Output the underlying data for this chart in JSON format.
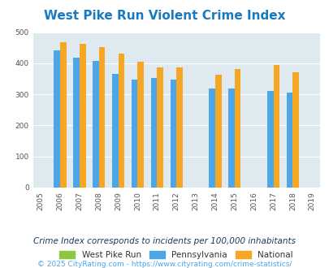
{
  "title": "West Pike Run Violent Crime Index",
  "years": [
    2005,
    2006,
    2007,
    2008,
    2009,
    2010,
    2011,
    2012,
    2013,
    2014,
    2015,
    2016,
    2017,
    2018,
    2019
  ],
  "west_pike_run": [
    null,
    null,
    null,
    null,
    null,
    null,
    null,
    null,
    null,
    null,
    null,
    null,
    null,
    null,
    null
  ],
  "pennsylvania": [
    null,
    441,
    418,
    408,
    365,
    348,
    352,
    348,
    null,
    318,
    318,
    null,
    312,
    305,
    null
  ],
  "national": [
    null,
    467,
    462,
    452,
    432,
    405,
    387,
    387,
    null,
    362,
    382,
    null,
    394,
    370,
    null
  ],
  "bar_colors": {
    "west_pike_run": "#8dc63f",
    "pennsylvania": "#4da6e8",
    "national": "#f5a623"
  },
  "ylim": [
    0,
    500
  ],
  "yticks": [
    0,
    100,
    200,
    300,
    400,
    500
  ],
  "plot_bg": "#deeaf0",
  "title_color": "#1a7abf",
  "footer_text": "Crime Index corresponds to incidents per 100,000 inhabitants",
  "copyright_text": "© 2025 CityRating.com - https://www.cityrating.com/crime-statistics/",
  "legend_labels": [
    "West Pike Run",
    "Pennsylvania",
    "National"
  ],
  "title_fontsize": 11,
  "footer_fontsize": 7.5,
  "copyright_fontsize": 6.5,
  "footer_color": "#1a3a5c",
  "copyright_color": "#4da6e8"
}
